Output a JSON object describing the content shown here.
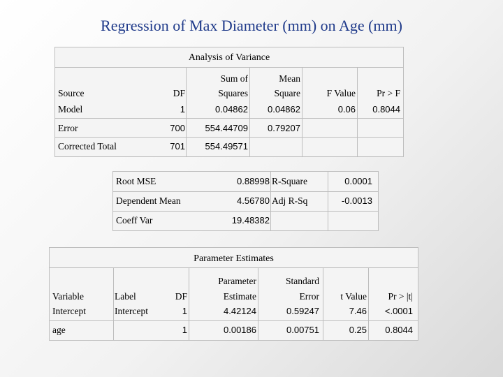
{
  "title": "Regression of Max Diameter (mm) on Age (mm)",
  "anova": {
    "caption": "Analysis of Variance",
    "headers": {
      "source": "Source",
      "df": "DF",
      "ss_top": "Sum of",
      "ss_bottom": "Squares",
      "ms_top": "Mean",
      "ms_bottom": "Square",
      "f": "F Value",
      "p": "Pr > F"
    },
    "rows": [
      {
        "source": "Model",
        "df": "1",
        "ss": "0.04862",
        "ms": "0.04862",
        "f": "0.06",
        "p": "0.8044"
      },
      {
        "source": "Error",
        "df": "700",
        "ss": "554.44709",
        "ms": "0.79207",
        "f": "",
        "p": ""
      },
      {
        "source": "Corrected Total",
        "df": "701",
        "ss": "554.49571",
        "ms": "",
        "f": "",
        "p": ""
      }
    ]
  },
  "fit": {
    "rows": [
      {
        "label": "Root MSE",
        "value": "0.88998",
        "label2": "R-Square",
        "value2": "0.0001"
      },
      {
        "label": "Dependent Mean",
        "value": "4.56780",
        "label2": "Adj R-Sq",
        "value2": "-0.0013"
      },
      {
        "label": "Coeff Var",
        "value": "19.48382",
        "label2": "",
        "value2": ""
      }
    ]
  },
  "params": {
    "caption": "Parameter Estimates",
    "headers": {
      "variable": "Variable",
      "label": "Label",
      "df": "DF",
      "est_top": "Parameter",
      "est_bottom": "Estimate",
      "se_top": "Standard",
      "se_bottom": "Error",
      "t": "t Value",
      "p": "Pr > |t|"
    },
    "rows": [
      {
        "variable": "Intercept",
        "label": "Intercept",
        "df": "1",
        "est": "4.42124",
        "se": "0.59247",
        "t": "7.46",
        "p": "<.0001"
      },
      {
        "variable": "age",
        "label": "",
        "df": "1",
        "est": "0.00186",
        "se": "0.00751",
        "t": "0.25",
        "p": "0.8044"
      }
    ]
  }
}
